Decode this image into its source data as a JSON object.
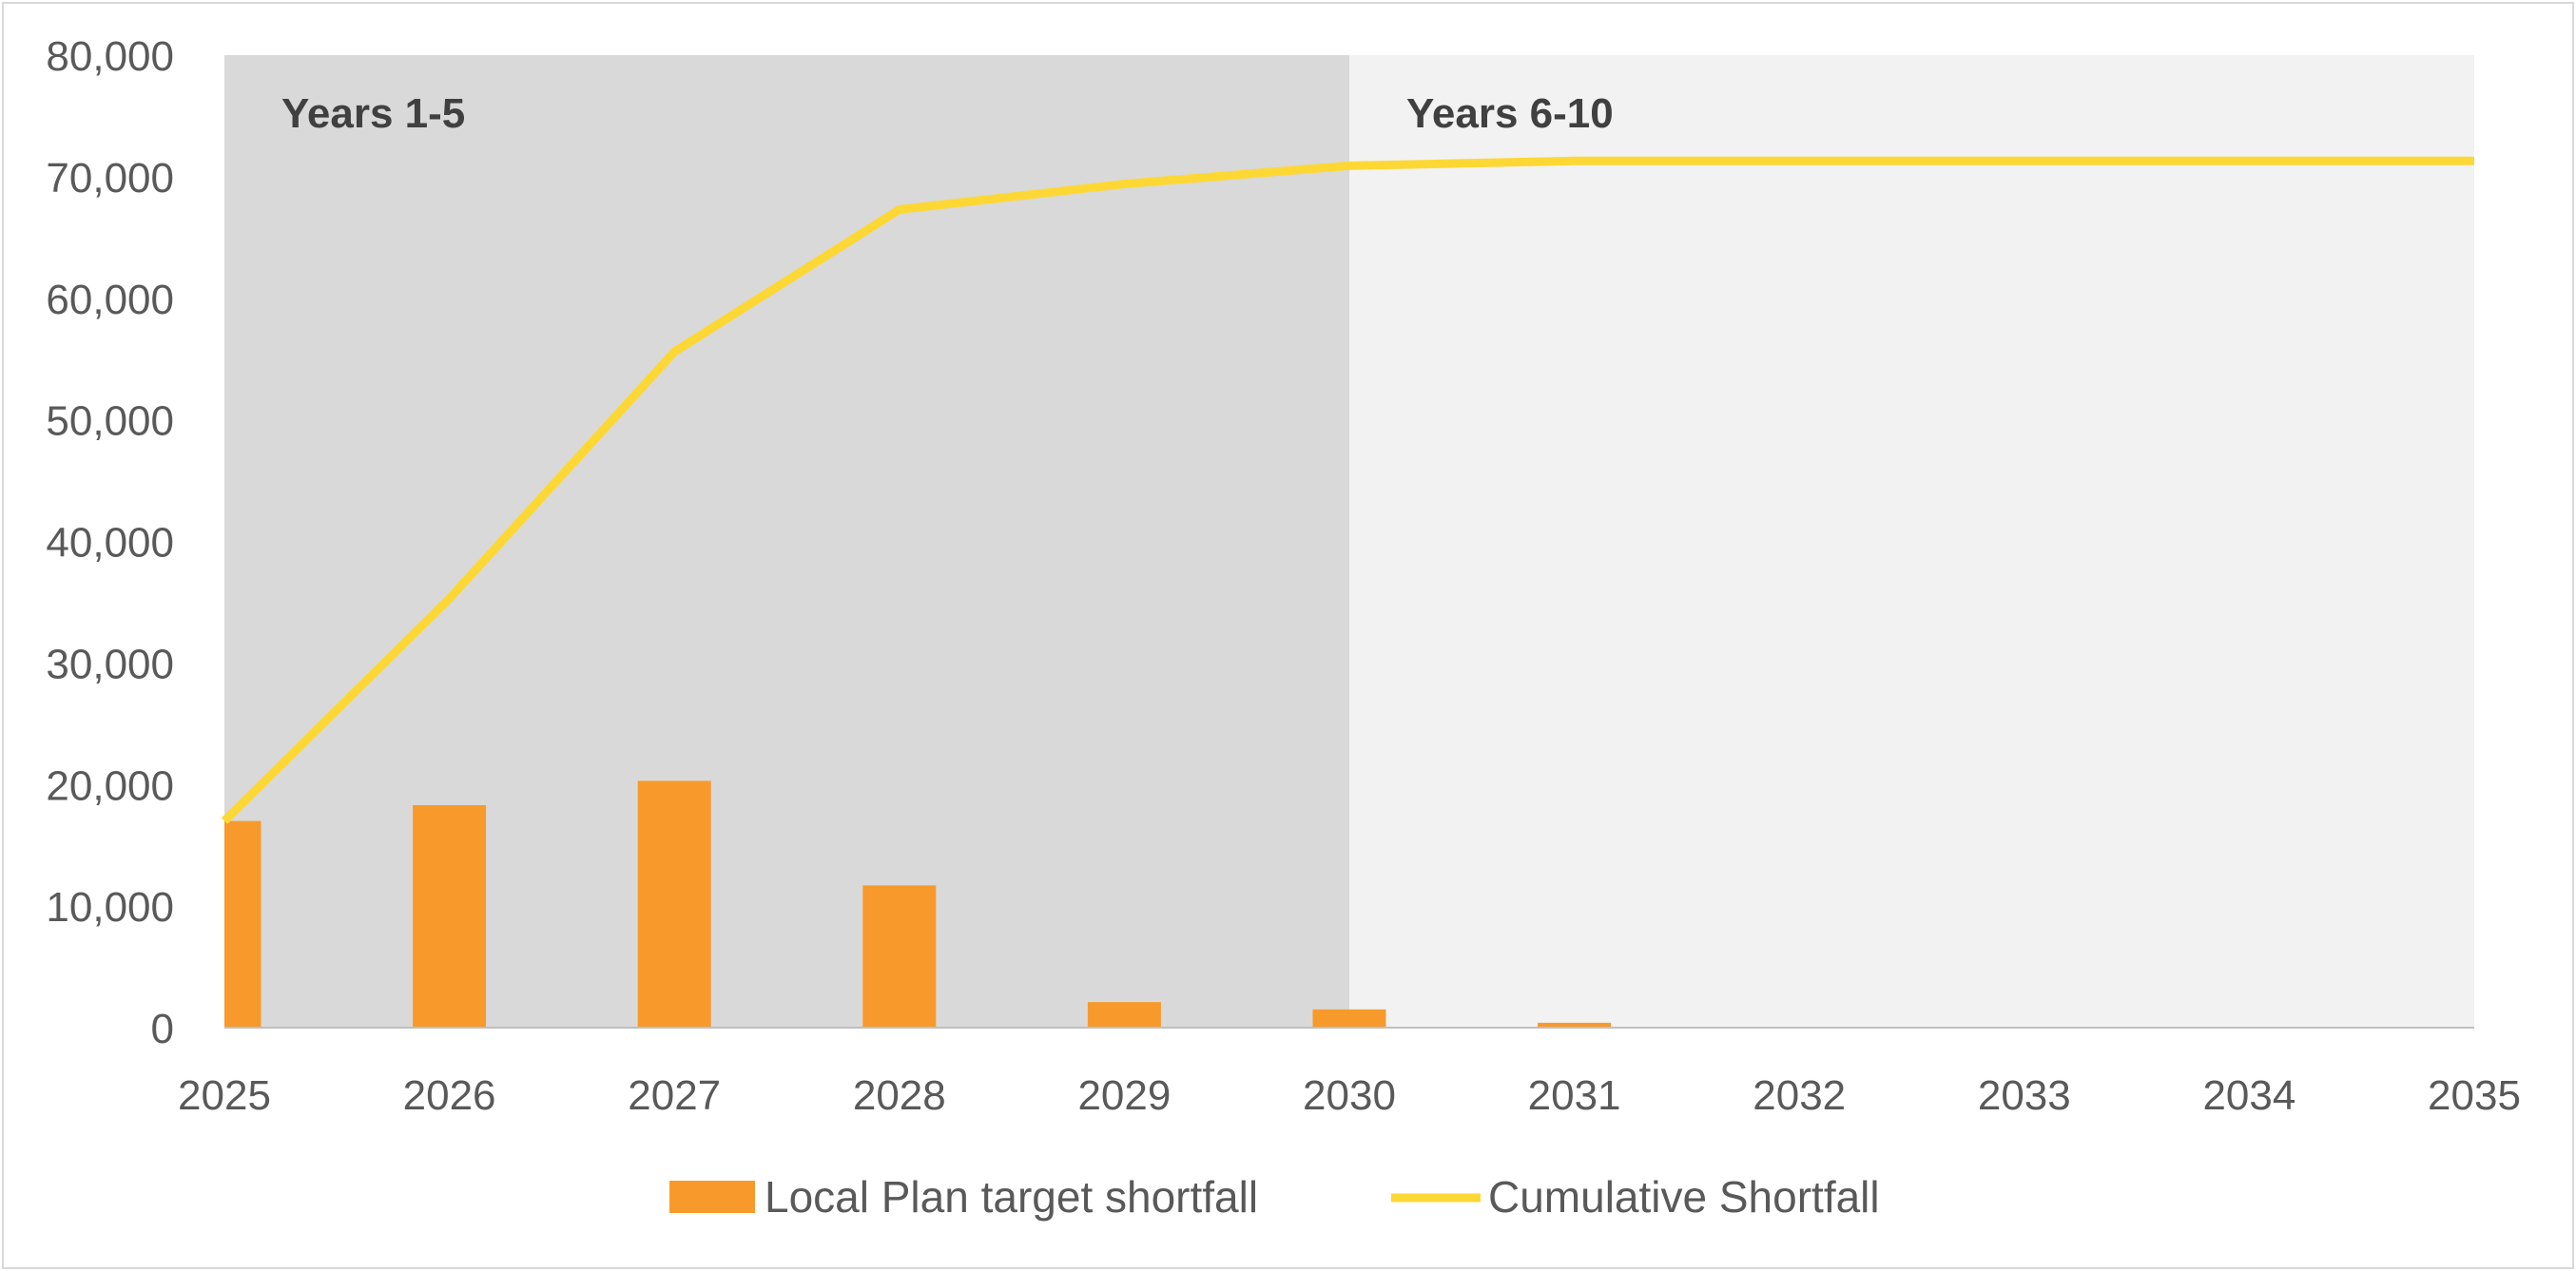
{
  "chart_data": {
    "type": "bar",
    "title": "",
    "xlabel": "",
    "ylabel": "",
    "categories": [
      "2025",
      "2026",
      "2027",
      "2028",
      "2029",
      "2030",
      "2031",
      "2032",
      "2033",
      "2034",
      "2035"
    ],
    "ylim": [
      0,
      80000
    ],
    "yticks": [
      0,
      10000,
      20000,
      30000,
      40000,
      50000,
      60000,
      70000,
      80000
    ],
    "ytick_labels": [
      "0",
      "10,000",
      "20,000",
      "30,000",
      "40,000",
      "50,000",
      "60,000",
      "70,000",
      "80,000"
    ],
    "grid": false,
    "legend_position": "bottom",
    "regions": [
      {
        "label": "Years 1-5",
        "from": "2025",
        "to": "2030",
        "color": "#d9d9d9"
      },
      {
        "label": "Years 6-10",
        "from": "2030",
        "to": "2035",
        "color": "#f2f2f2"
      }
    ],
    "series": [
      {
        "name": "Local Plan target shortfall",
        "type": "bar",
        "color": "#f79a2b",
        "values": [
          17000,
          18300,
          20300,
          11700,
          2100,
          1500,
          400,
          0,
          0,
          0,
          0
        ]
      },
      {
        "name": "Cumulative Shortfall",
        "type": "line",
        "color": "#fdd835",
        "values": [
          17000,
          35300,
          55600,
          67300,
          69400,
          70900,
          71300,
          71300,
          71300,
          71300,
          71300
        ]
      }
    ]
  }
}
